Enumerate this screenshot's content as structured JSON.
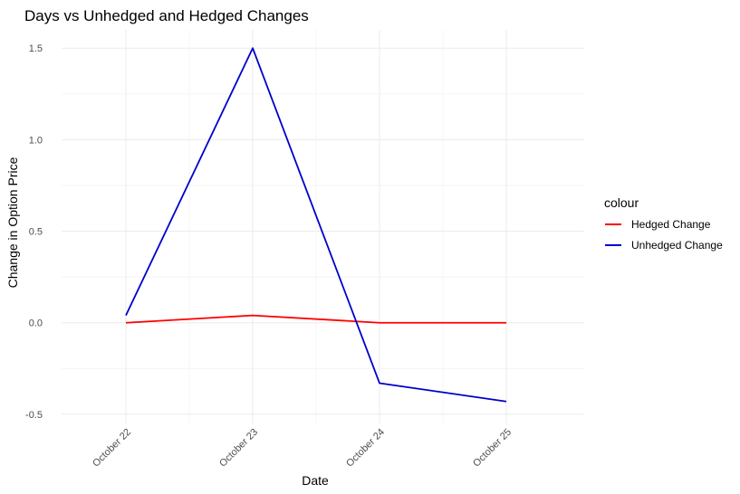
{
  "chart_data": {
    "type": "line",
    "title": "Days vs Unhedged and Hedged Changes",
    "xlabel": "Date",
    "ylabel": "Change in Option Price",
    "categories": [
      "October 22",
      "October 23",
      "October 24",
      "October 25"
    ],
    "series": [
      {
        "name": "Hedged Change",
        "color": "#ff0000",
        "values": [
          0.0,
          0.04,
          0.0,
          0.0
        ]
      },
      {
        "name": "Unhedged Change",
        "color": "#0000cd",
        "values": [
          0.04,
          1.5,
          -0.33,
          -0.43
        ]
      }
    ],
    "y_ticks": [
      "-0.5",
      "0.0",
      "0.5",
      "1.0",
      "1.5"
    ],
    "ylim": [
      -0.55,
      1.6
    ],
    "grid": true,
    "legend": {
      "title": "colour",
      "position": "right"
    }
  }
}
